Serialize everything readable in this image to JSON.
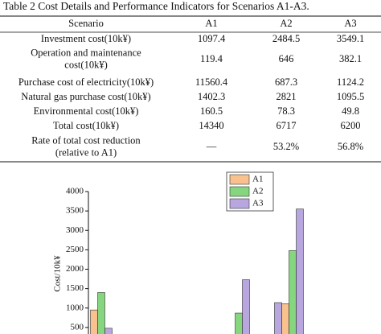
{
  "table": {
    "caption": "Table 2 Cost Details and Performance Indicators for Scenarios A1-A3.",
    "header": [
      "Scenario",
      "A1",
      "A2",
      "A3"
    ],
    "rows": [
      [
        [
          "Investment cost(10k¥)"
        ],
        "1097.4",
        "2484.5",
        "3549.1"
      ],
      [
        [
          "Operation and maintenance",
          "cost(10k¥)"
        ],
        "119.4",
        "646",
        "382.1"
      ],
      [
        [
          "Purchase cost of electricity(10k¥)"
        ],
        "11560.4",
        "687.3",
        "1124.2"
      ],
      [
        [
          "Natural gas purchase cost(10k¥)"
        ],
        "1402.3",
        "2821",
        "1095.5"
      ],
      [
        [
          "Environmental cost(10k¥)"
        ],
        "160.5",
        "78.3",
        "49.8"
      ],
      [
        [
          "Total cost(10k¥)"
        ],
        "14340",
        "6717",
        "6200"
      ],
      [
        [
          "Rate of total cost reduction",
          "(relative to A1)"
        ],
        "—",
        "53.2%",
        "56.8%"
      ]
    ]
  },
  "chart_data": {
    "type": "bar",
    "y_label": "Cost/10k¥",
    "categories": [
      null,
      null,
      null,
      null
    ],
    "series": [
      {
        "name": "A1",
        "color": "#f8c18e",
        "values": [
          950,
          null,
          null,
          1110
        ]
      },
      {
        "name": "A2",
        "color": "#86d67f",
        "values": [
          1400,
          870,
          null,
          2480
        ]
      },
      {
        "name": "A3",
        "color": "#b8a7de",
        "values": [
          480,
          1730,
          1140,
          3550
        ]
      }
    ],
    "ylim": [
      0,
      4000
    ],
    "yticks": [
      500,
      1000,
      1500,
      2000,
      2500,
      3000,
      3500,
      4000
    ]
  }
}
